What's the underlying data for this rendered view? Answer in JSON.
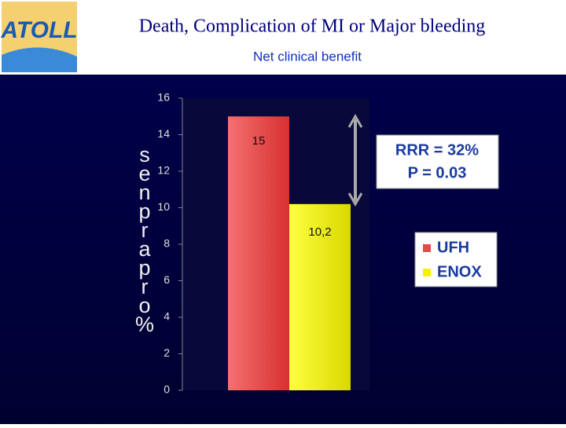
{
  "logo_text": "ATOLL",
  "chart_data": {
    "type": "bar",
    "title": "Death, Complication of MI or Major bleeding",
    "subtitle": "Net clinical benefit",
    "y_label": "senprapro%",
    "series": [
      {
        "name": "UFH",
        "color": "#e8484a",
        "values": [
          15
        ],
        "value_labels": [
          "15"
        ]
      },
      {
        "name": "ENOX",
        "color": "#f2f200",
        "values": [
          10.2
        ],
        "value_labels": [
          "10,2"
        ]
      }
    ],
    "ylim": [
      0,
      16
    ],
    "yticks": [
      0,
      2,
      4,
      6,
      8,
      10,
      12,
      14,
      16
    ],
    "annotations": [
      "RRR = 32%",
      "P = 0.03"
    ],
    "legend": "right"
  }
}
